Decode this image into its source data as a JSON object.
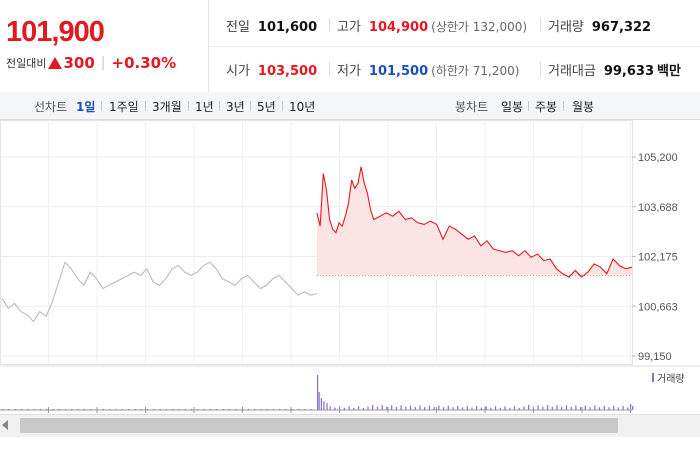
{
  "quote": {
    "current_price": "101,900",
    "change_label": "전일대비",
    "change_amount": "300",
    "change_percent": "+0.30%",
    "stats": {
      "prev_close_label": "전일",
      "prev_close": "101,600",
      "high_label": "고가",
      "high": "104,900",
      "upper_limit": "(상한가 132,000)",
      "volume_label": "거래량",
      "volume": "967,322",
      "open_label": "시가",
      "open": "103,500",
      "low_label": "저가",
      "low": "101,500",
      "lower_limit": "(하한가 71,200)",
      "value_label": "거래대금",
      "value": "99,633",
      "value_unit": "백만"
    },
    "colors": {
      "up": "#e4181f",
      "down": "#1a4ec2"
    }
  },
  "period_bar": {
    "line_label": "선차트",
    "line_periods": [
      "1일",
      "1주일",
      "3개월",
      "1년",
      "3년",
      "5년",
      "10년"
    ],
    "active_period": "1일",
    "candle_label": "봉차트",
    "candle_periods": [
      "일봉",
      "주봉",
      "월봉"
    ]
  },
  "chart_data": {
    "type": "line",
    "y_ticks": [
      "105,200",
      "103,688",
      "102,175",
      "100,663",
      "99,150"
    ],
    "ylim": [
      99150,
      105200
    ],
    "reference_price": 101600,
    "volume_legend": "거래량",
    "series": [
      {
        "name": "",
        "color": "#bbbbbb",
        "x": [
          0,
          0.02,
          0.04,
          0.06,
          0.08,
          0.1,
          0.12,
          0.14,
          0.16,
          0.18,
          0.2,
          0.22,
          0.24,
          0.26,
          0.28,
          0.3,
          0.32,
          0.34,
          0.36,
          0.38,
          0.4,
          0.42,
          0.44,
          0.46,
          0.48,
          0.5,
          0.52,
          0.54,
          0.56,
          0.58,
          0.6,
          0.62,
          0.64,
          0.66,
          0.68,
          0.7,
          0.72,
          0.74,
          0.76,
          0.78,
          0.8,
          0.82,
          0.84,
          0.86,
          0.88,
          0.9,
          0.92,
          0.94,
          0.96,
          0.98,
          1.0
        ],
        "y": [
          100900,
          100600,
          100750,
          100500,
          100400,
          100200,
          100500,
          100350,
          100800,
          101400,
          102000,
          101800,
          101500,
          101300,
          101700,
          101500,
          101200,
          101300,
          101400,
          101500,
          101600,
          101700,
          101600,
          101800,
          101400,
          101300,
          101500,
          101800,
          101900,
          101700,
          101600,
          101700,
          101900,
          102000,
          101800,
          101500,
          101400,
          101300,
          101500,
          101600,
          101400,
          101200,
          101300,
          101500,
          101600,
          101400,
          101200,
          101000,
          101100,
          101000,
          101050
        ]
      },
      {
        "name": "",
        "color": "#e4181f",
        "x": [
          1.0,
          1.01,
          1.02,
          1.03,
          1.04,
          1.05,
          1.06,
          1.07,
          1.08,
          1.09,
          1.1,
          1.11,
          1.12,
          1.13,
          1.14,
          1.15,
          1.16,
          1.17,
          1.18,
          1.2,
          1.22,
          1.24,
          1.26,
          1.28,
          1.3,
          1.32,
          1.34,
          1.36,
          1.38,
          1.4,
          1.42,
          1.44,
          1.46,
          1.48,
          1.5,
          1.52,
          1.54,
          1.56,
          1.58,
          1.6,
          1.62,
          1.64,
          1.66,
          1.68,
          1.7,
          1.72,
          1.74,
          1.76,
          1.78,
          1.8,
          1.82,
          1.84,
          1.86,
          1.88,
          1.9,
          1.92,
          1.94,
          1.96,
          1.98,
          2.0
        ],
        "y": [
          103500,
          103100,
          104700,
          104200,
          103300,
          103000,
          102900,
          103200,
          103100,
          103400,
          103800,
          104500,
          104250,
          104400,
          104900,
          104400,
          104100,
          103600,
          103300,
          103400,
          103500,
          103400,
          103550,
          103300,
          103350,
          103200,
          103150,
          103250,
          103150,
          102700,
          103100,
          103000,
          102850,
          102700,
          102800,
          102500,
          102650,
          102400,
          102350,
          102300,
          102350,
          102200,
          102350,
          102150,
          102250,
          102050,
          102100,
          101800,
          101650,
          101550,
          101750,
          101550,
          101700,
          101950,
          101850,
          101650,
          102100,
          101900,
          101800,
          101850
        ]
      }
    ]
  }
}
